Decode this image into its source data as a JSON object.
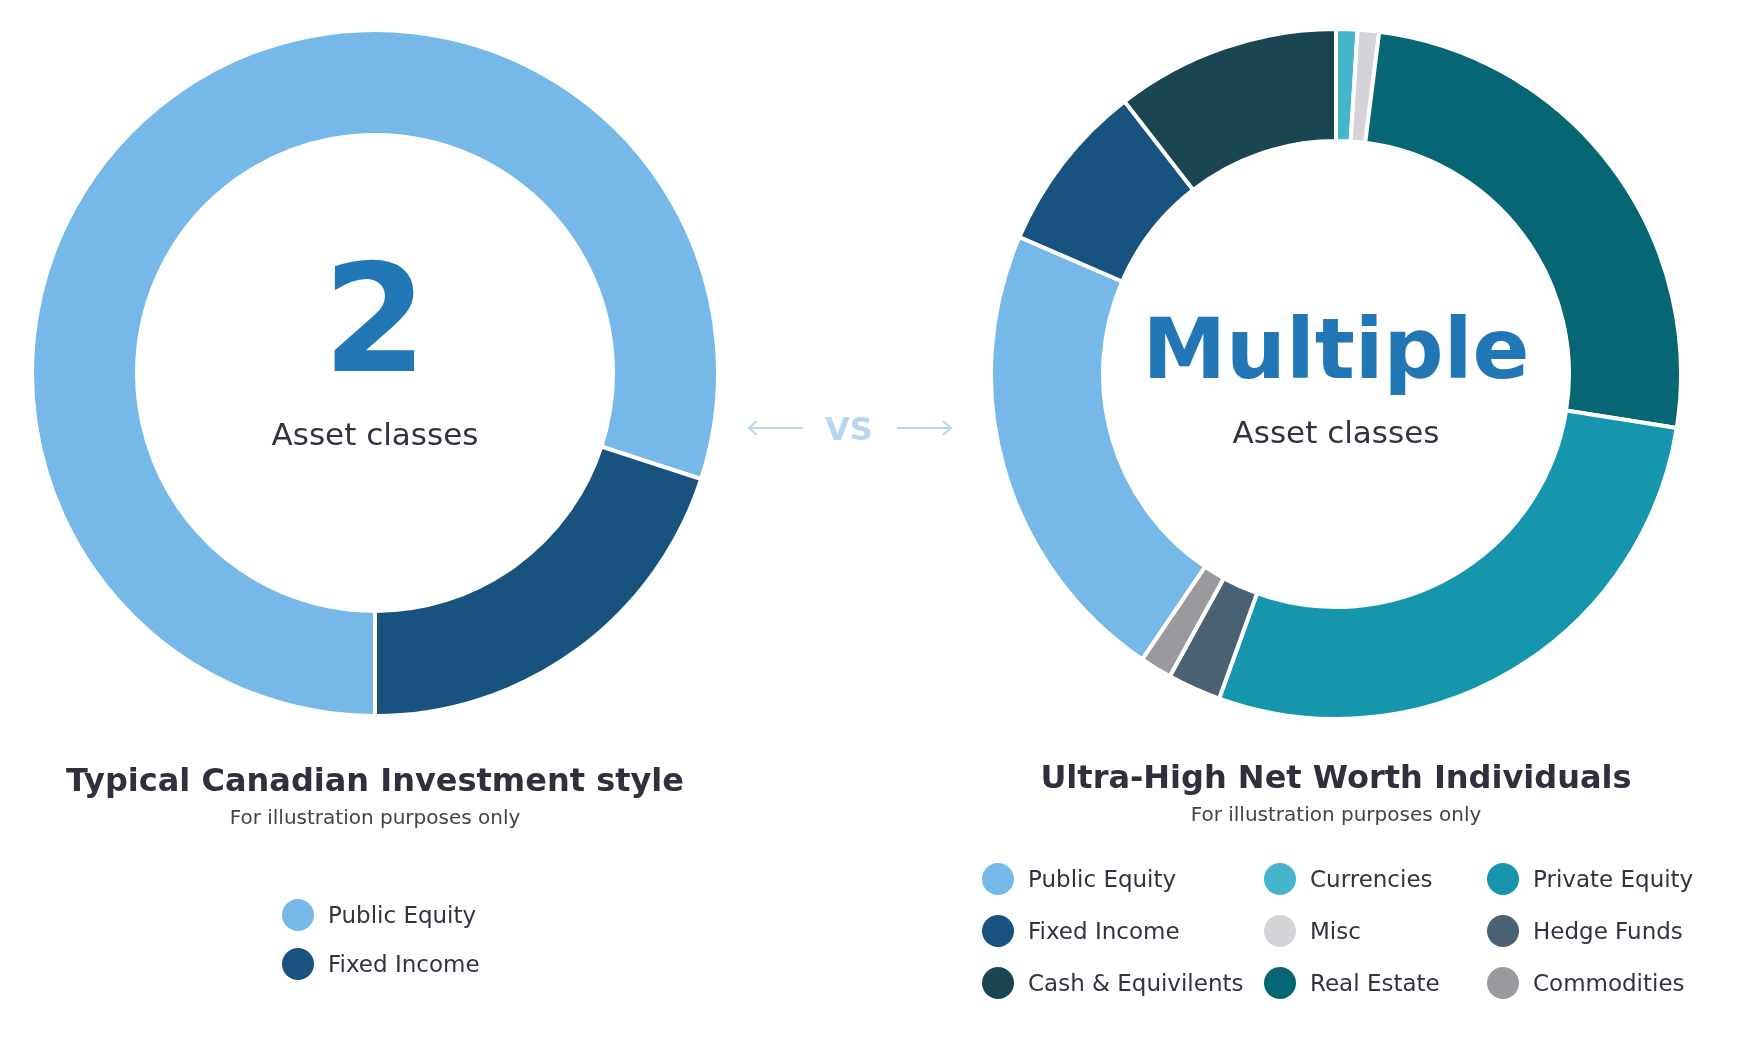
{
  "chart_data": [
    {
      "type": "donut",
      "title": "Typical Canadian  Investment style",
      "subtitle": "For illustration purposes only",
      "categories": [
        "Public Equity",
        "Fixed Income"
      ],
      "values": [
        80,
        20
      ],
      "colors": [
        "#76b9e8",
        "#18527e"
      ],
      "legend": "bottom",
      "annotations": [
        "2",
        "Asset classes"
      ]
    },
    {
      "type": "donut",
      "title": "Ultra-High Net Worth Individuals",
      "subtitle": "For illustration purposes only",
      "categories": [
        "Currencies",
        "Misc",
        "Real Estate",
        "Private Equity",
        "Hedge Funds",
        "Commodities",
        "Public Equity",
        "Fixed Income",
        "Cash & Equivilents"
      ],
      "values": [
        1,
        1,
        25.5,
        28,
        2.5,
        1.5,
        22,
        8,
        10.5
      ],
      "colors": [
        "#45b5cc",
        "#d3d3d8",
        "#066674",
        "#1696ad",
        "#4a6073",
        "#9a9a9e",
        "#76b9e8",
        "#18527e",
        "#1a4651"
      ],
      "legend": "bottom",
      "annotations": [
        "Multiple",
        "Asset classes",
        "VS"
      ]
    }
  ]
}
